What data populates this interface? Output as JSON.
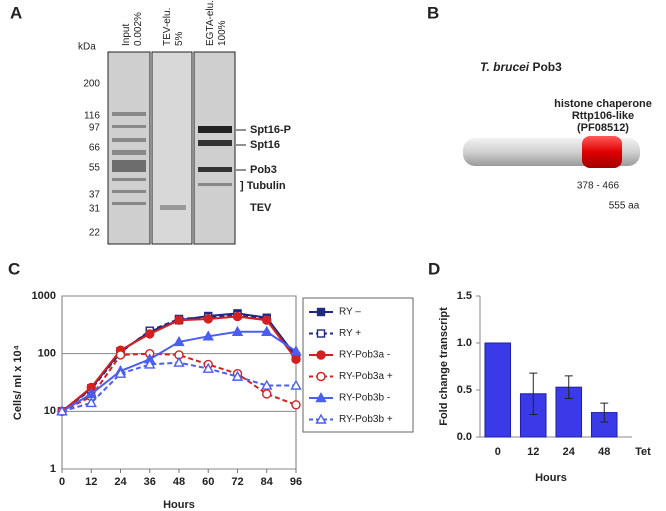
{
  "panels": {
    "a": "A",
    "b": "B",
    "c": "C",
    "d": "D"
  },
  "gel": {
    "kda_label": "kDa",
    "lanes": [
      "Input 0.002%",
      "TEV-elu. 5%",
      "EGTA-elu. 100%"
    ],
    "markers": [
      200,
      116,
      97,
      66,
      55,
      37,
      31,
      22
    ],
    "band_labels": [
      "Spt16-P",
      "Spt16",
      "Pob3",
      "] Tubulin",
      "TEV"
    ]
  },
  "domain_diagram": {
    "title_italic": "T. brucei",
    "title_rest": " Pob3",
    "domain_label": [
      "histone chaperone",
      "Rttp106-like",
      "(PF08512)"
    ],
    "range_label": "378 - 466",
    "length_label": "555 aa"
  },
  "chart_data": [
    {
      "type": "line",
      "y_label": "Cells/ ml x 10⁴",
      "x_label": "Hours",
      "log_y": true,
      "x": [
        0,
        12,
        24,
        36,
        48,
        60,
        72,
        84,
        96
      ],
      "xlim": [
        0,
        96
      ],
      "xticks": [
        0,
        12,
        24,
        36,
        48,
        60,
        72,
        84,
        96
      ],
      "ylim": [
        1,
        1000
      ],
      "yticks": [
        1,
        10,
        100,
        1000
      ],
      "grid": true,
      "legend": "right",
      "series": [
        {
          "name": "RY –",
          "color": "#1f2a80",
          "marker": "square",
          "filled": true,
          "dashed": false,
          "values": [
            10,
            25,
            110,
            240,
            380,
            450,
            500,
            420,
            90
          ]
        },
        {
          "name": "RY +",
          "color": "#1f2a80",
          "marker": "square",
          "filled": false,
          "dashed": true,
          "values": [
            10,
            24,
            105,
            250,
            400,
            430,
            470,
            400,
            85
          ]
        },
        {
          "name": "RY-Pob3a -",
          "color": "#d42020",
          "marker": "circle",
          "filled": true,
          "dashed": false,
          "values": [
            10,
            26,
            115,
            220,
            380,
            400,
            440,
            380,
            80
          ]
        },
        {
          "name": "RY-Pob3a +",
          "color": "#d42020",
          "marker": "circle",
          "filled": false,
          "dashed": true,
          "values": [
            10,
            18,
            95,
            100,
            95,
            65,
            45,
            20,
            13
          ]
        },
        {
          "name": "RY-Pob3b -",
          "color": "#4a5ef0",
          "marker": "triangle",
          "filled": true,
          "dashed": false,
          "values": [
            10,
            20,
            50,
            80,
            160,
            200,
            240,
            240,
            110
          ]
        },
        {
          "name": "RY-Pob3b +",
          "color": "#4a5ef0",
          "marker": "triangle",
          "filled": false,
          "dashed": true,
          "values": [
            10,
            14,
            45,
            65,
            70,
            55,
            40,
            28,
            28
          ]
        }
      ]
    },
    {
      "type": "bar",
      "y_label": "Fold change transcript",
      "x_label": "Hours",
      "x_extra_label": "Tet",
      "categories": [
        "0",
        "12",
        "24",
        "48"
      ],
      "values": [
        1.0,
        0.46,
        0.53,
        0.26
      ],
      "errors": [
        null,
        0.22,
        0.12,
        0.1
      ],
      "color": "#3a3ae8",
      "ylim": [
        0,
        1.5
      ],
      "yticks": [
        {
          "value": 0,
          "label": "0.0"
        },
        {
          "value": 0.5,
          "label": "0.5"
        },
        {
          "value": 1,
          "label": "1.0"
        },
        {
          "value": 1.5,
          "label": "1.5"
        }
      ]
    }
  ]
}
